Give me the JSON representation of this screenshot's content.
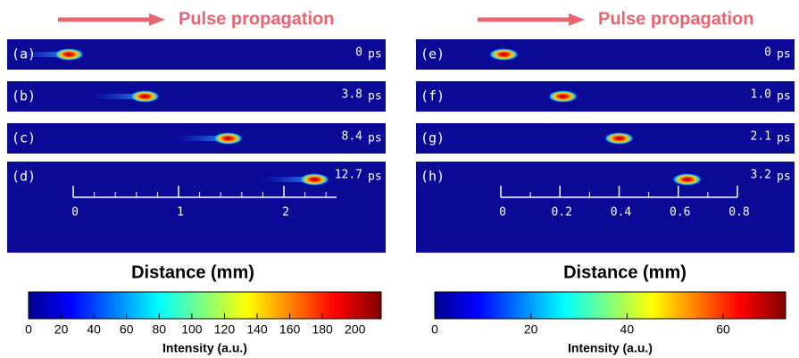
{
  "left": {
    "heading": "Pulse propagation",
    "panels": [
      {
        "label": "(a)",
        "time": "0",
        "unit": "ps",
        "position": -0.04
      },
      {
        "label": "(b)",
        "time": "3.8",
        "unit": "ps",
        "position": 0.68
      },
      {
        "label": "(c)",
        "time": "8.4",
        "unit": "ps",
        "position": 1.47
      },
      {
        "label": "(d)",
        "time": "12.7",
        "unit": "ps",
        "position": 2.29
      }
    ],
    "scale": {
      "range": [
        0,
        2.5
      ],
      "ticks": [
        0,
        0.2,
        0.4,
        0.6,
        0.8,
        1,
        1.2,
        1.4,
        1.6,
        1.8,
        2,
        2.2,
        2.4
      ],
      "major": [
        0,
        1,
        2
      ]
    },
    "axis_title": "Distance (mm)",
    "colorbar": {
      "range": [
        0,
        216
      ],
      "ticks": [
        0,
        20,
        40,
        60,
        80,
        100,
        120,
        140,
        160,
        180,
        200
      ],
      "title": "Intensity (a.u.)"
    }
  },
  "right": {
    "heading": "Pulse propagation",
    "panels": [
      {
        "label": "(e)",
        "time": "0",
        "unit": "ps",
        "position": 0.01
      },
      {
        "label": "(f)",
        "time": "1.0",
        "unit": "ps",
        "position": 0.21
      },
      {
        "label": "(g)",
        "time": "2.1",
        "unit": "ps",
        "position": 0.4
      },
      {
        "label": "(h)",
        "time": "3.2",
        "unit": "ps",
        "position": 0.63
      }
    ],
    "scale": {
      "range": [
        0,
        0.8
      ],
      "ticks": [
        0,
        0.1,
        0.2,
        0.3,
        0.4,
        0.5,
        0.6,
        0.7,
        0.8
      ],
      "major": [
        0,
        0.2,
        0.4,
        0.6,
        0.8
      ]
    },
    "axis_title": "Distance (mm)",
    "colorbar": {
      "range": [
        0,
        73
      ],
      "ticks": [
        0,
        20,
        40,
        60
      ],
      "title": "Intensity (a.u.)"
    }
  }
}
